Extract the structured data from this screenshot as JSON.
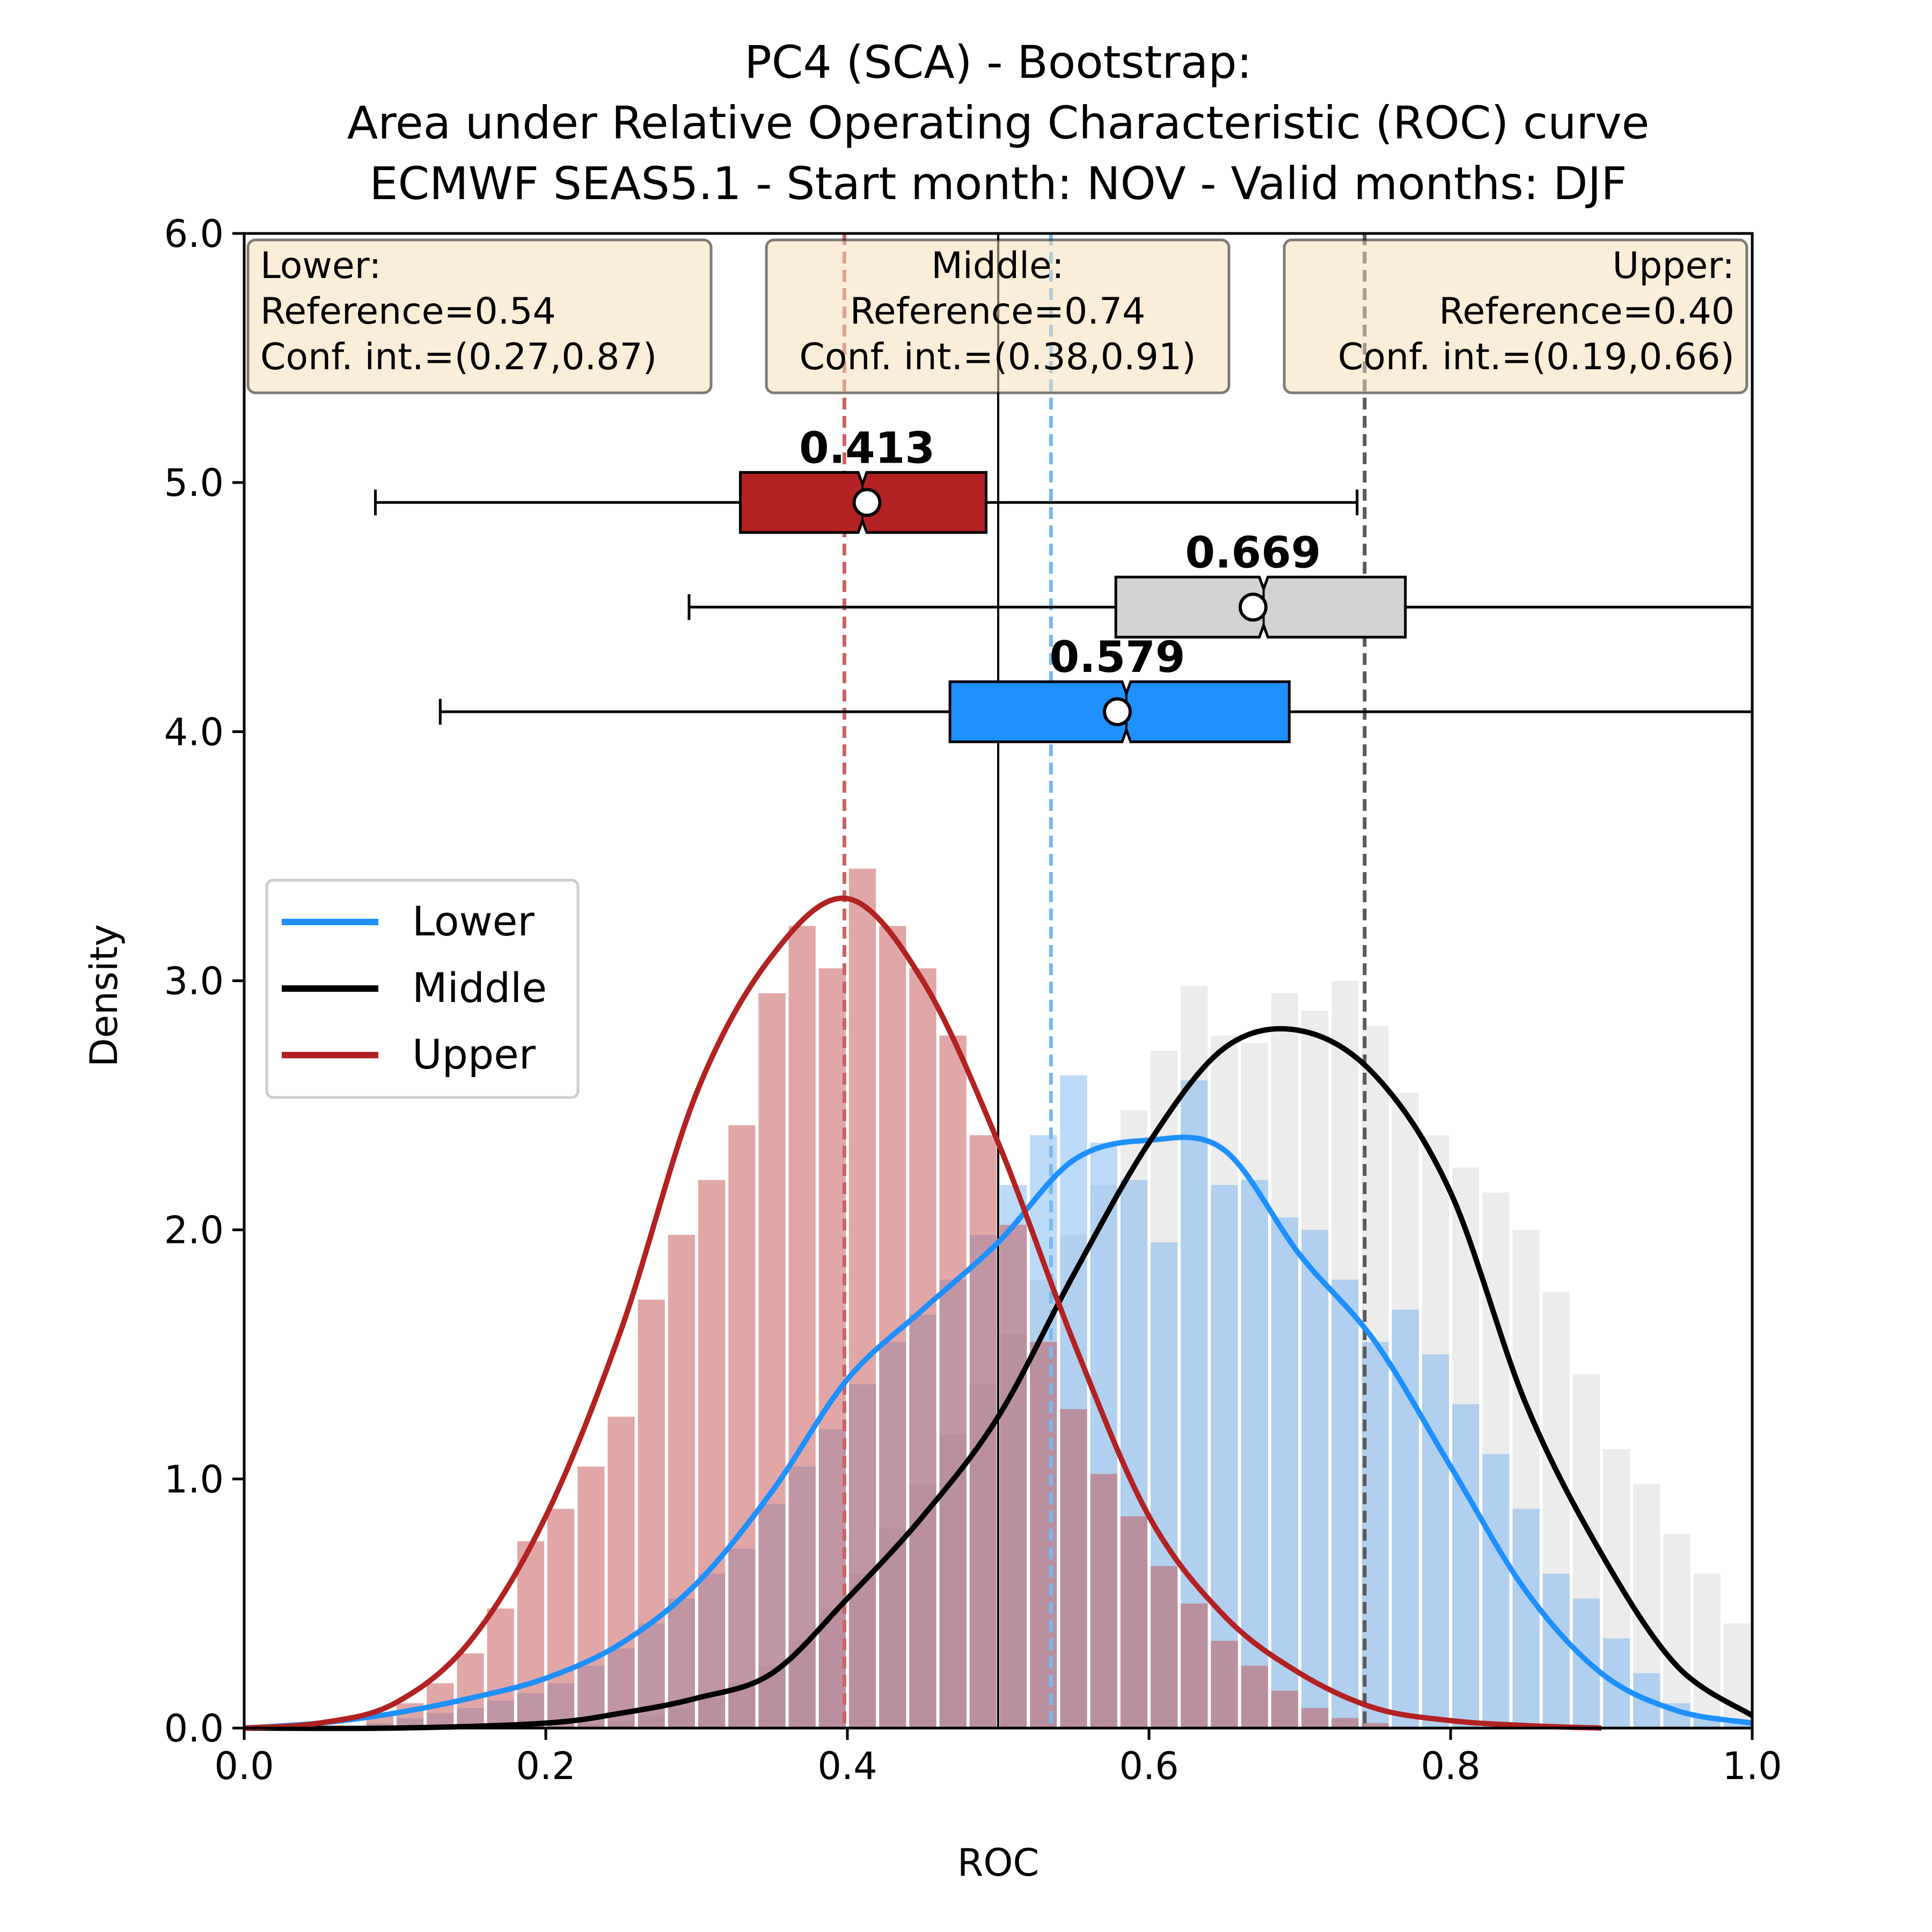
{
  "chart_data": {
    "type": "histogram-kde-boxplot",
    "title": [
      "PC4 (SCA) - Bootstrap:",
      "Area under Relative Operating Characteristic (ROC) curve",
      "ECMWF SEAS5.1 - Start month: NOV - Valid months: DJF"
    ],
    "xlabel": "ROC",
    "ylabel": "Density",
    "xlim": [
      0.0,
      1.0
    ],
    "ylim": [
      0.0,
      6.0
    ],
    "xticks": [
      "0.0",
      "0.2",
      "0.4",
      "0.6",
      "0.8",
      "1.0"
    ],
    "yticks": [
      "0.0",
      "1.0",
      "2.0",
      "3.0",
      "4.0",
      "5.0",
      "6.0"
    ],
    "legend_position": "center-left",
    "chance_line_x": 0.5,
    "info_boxes": [
      {
        "name": "Lower",
        "line1": "Lower:",
        "line2": "Reference=0.54",
        "line3": "Conf. int.=(0.27,0.87)",
        "align": "left"
      },
      {
        "name": "Middle",
        "line1": "Middle:",
        "line2": "Reference=0.74",
        "line3": "Conf. int.=(0.38,0.91)",
        "align": "center"
      },
      {
        "name": "Upper",
        "line1": "Upper:",
        "line2": "Reference=0.40",
        "line3": "Conf. int.=(0.19,0.66)",
        "align": "right"
      }
    ],
    "series": [
      {
        "name": "Lower",
        "color": "#1e90ff",
        "reference": 0.535,
        "median_label": "0.579",
        "mean": 0.579,
        "box": {
          "y": 4.08,
          "whisker_low": 0.13,
          "q1": 0.468,
          "median": 0.585,
          "q3": 0.693,
          "whisker_high": 1.0
        },
        "hist_start": 0.08,
        "bin_width": 0.02,
        "hist": [
          0.02,
          0.04,
          0.06,
          0.08,
          0.11,
          0.14,
          0.18,
          0.25,
          0.32,
          0.42,
          0.52,
          0.62,
          0.72,
          0.9,
          1.05,
          1.2,
          1.38,
          1.55,
          1.66,
          1.8,
          1.98,
          2.18,
          2.38,
          2.62,
          2.35,
          2.2,
          1.95,
          2.6,
          2.18,
          2.2,
          2.05,
          2.0,
          1.8,
          1.55,
          1.68,
          1.5,
          1.3,
          1.1,
          0.88,
          0.62,
          0.52,
          0.36,
          0.22,
          0.1,
          0.05,
          0.02
        ],
        "kde_x": [
          0.0,
          0.05,
          0.1,
          0.15,
          0.2,
          0.25,
          0.3,
          0.35,
          0.4,
          0.45,
          0.5,
          0.55,
          0.6,
          0.65,
          0.7,
          0.75,
          0.8,
          0.85,
          0.9,
          0.95,
          1.0
        ],
        "kde_y": [
          0.0,
          0.02,
          0.06,
          0.12,
          0.2,
          0.34,
          0.58,
          0.95,
          1.4,
          1.68,
          1.95,
          2.28,
          2.36,
          2.32,
          1.9,
          1.55,
          1.05,
          0.55,
          0.22,
          0.07,
          0.02
        ]
      },
      {
        "name": "Middle",
        "color": "#000000",
        "reference": 0.743,
        "median_label": "0.669",
        "mean": 0.669,
        "box": {
          "y": 4.5,
          "whisker_low": 0.295,
          "q1": 0.578,
          "median": 0.676,
          "q3": 0.77,
          "whisker_high": 1.0
        },
        "hist_start": 0.2,
        "bin_width": 0.02,
        "hist": [
          0.0,
          0.02,
          0.03,
          0.05,
          0.08,
          0.12,
          0.18,
          0.25,
          0.35,
          0.48,
          0.62,
          0.8,
          0.98,
          1.18,
          1.38,
          1.58,
          1.8,
          1.98,
          2.18,
          2.48,
          2.72,
          2.98,
          2.78,
          2.75,
          2.95,
          2.88,
          3.0,
          2.82,
          2.55,
          2.38,
          2.25,
          2.15,
          2.0,
          1.75,
          1.42,
          1.12,
          0.98,
          0.78,
          0.62,
          0.42
        ],
        "kde_x": [
          0.0,
          0.1,
          0.2,
          0.25,
          0.3,
          0.35,
          0.4,
          0.45,
          0.5,
          0.55,
          0.6,
          0.65,
          0.7,
          0.75,
          0.8,
          0.85,
          0.9,
          0.95,
          1.0
        ],
        "kde_y": [
          0.0,
          0.0,
          0.02,
          0.06,
          0.12,
          0.22,
          0.52,
          0.85,
          1.25,
          1.82,
          2.35,
          2.73,
          2.8,
          2.62,
          2.15,
          1.3,
          0.7,
          0.25,
          0.05
        ]
      },
      {
        "name": "Upper",
        "color": "#b22222",
        "reference": 0.398,
        "median_label": "0.413",
        "mean": 0.413,
        "box": {
          "y": 4.92,
          "whisker_low": 0.087,
          "q1": 0.329,
          "median": 0.41,
          "q3": 0.492,
          "whisker_high": 0.738
        },
        "hist_start": 0.08,
        "bin_width": 0.02,
        "hist": [
          0.05,
          0.1,
          0.18,
          0.3,
          0.48,
          0.75,
          0.88,
          1.05,
          1.25,
          1.72,
          1.98,
          2.2,
          2.42,
          2.95,
          3.22,
          3.05,
          3.45,
          3.22,
          3.05,
          2.78,
          2.38,
          2.02,
          1.55,
          1.28,
          1.02,
          0.85,
          0.65,
          0.5,
          0.35,
          0.25,
          0.15,
          0.08,
          0.04,
          0.02
        ],
        "kde_x": [
          0.0,
          0.05,
          0.1,
          0.15,
          0.2,
          0.25,
          0.3,
          0.35,
          0.4,
          0.45,
          0.5,
          0.55,
          0.6,
          0.65,
          0.7,
          0.75,
          0.8,
          0.85,
          0.9
        ],
        "kde_y": [
          0.0,
          0.02,
          0.1,
          0.35,
          0.85,
          1.6,
          2.55,
          3.1,
          3.33,
          3.0,
          2.35,
          1.55,
          0.85,
          0.45,
          0.22,
          0.08,
          0.03,
          0.01,
          0.0
        ]
      }
    ]
  }
}
